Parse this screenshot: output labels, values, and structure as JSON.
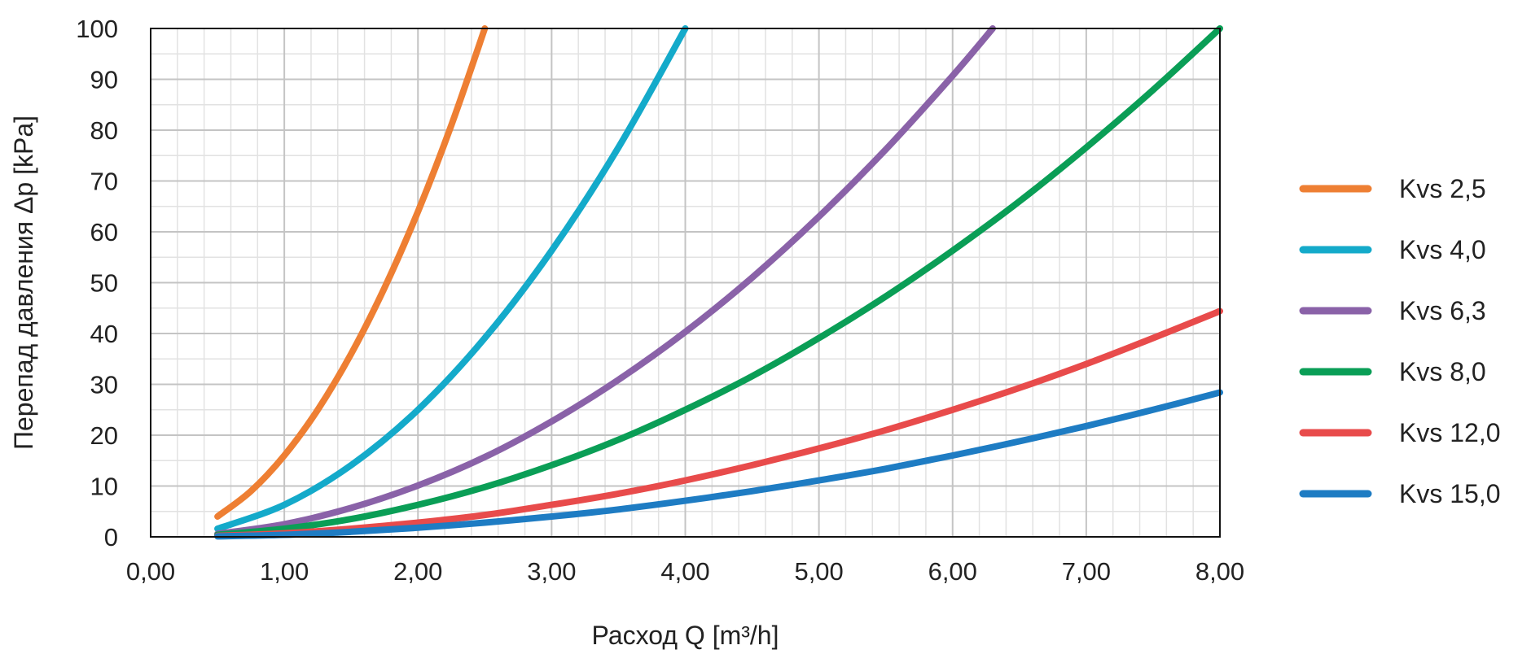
{
  "chart_data": {
    "type": "line",
    "xlabel": "Расход Q [m³/h]",
    "ylabel": "Перепад давления  Δp [kPa]",
    "xlim": [
      0,
      8
    ],
    "ylim": [
      0,
      100
    ],
    "x_ticks": [
      "0,00",
      "1,00",
      "2,00",
      "3,00",
      "4,00",
      "5,00",
      "6,00",
      "7,00",
      "8,00"
    ],
    "y_ticks": [
      "0",
      "10",
      "20",
      "30",
      "40",
      "50",
      "60",
      "70",
      "80",
      "90",
      "100"
    ],
    "grid": true,
    "legend_position": "right",
    "series": [
      {
        "name": "Kvs 2,5",
        "color": "#EE7F33",
        "x": [
          0.5,
          0.75,
          1.0,
          1.25,
          1.5,
          1.75,
          2.0,
          2.25,
          2.5
        ],
        "y": [
          4,
          9,
          16,
          25,
          36,
          49,
          64,
          81,
          100
        ]
      },
      {
        "name": "Kvs 4,0",
        "color": "#14AACA",
        "x": [
          0.5,
          1.0,
          1.5,
          2.0,
          2.5,
          3.0,
          3.5,
          4.0
        ],
        "y": [
          1.6,
          6.3,
          14.1,
          25.0,
          39.1,
          56.3,
          76.6,
          100
        ]
      },
      {
        "name": "Kvs 6,3",
        "color": "#8A62A8",
        "x": [
          0.5,
          1.0,
          1.5,
          2.0,
          2.5,
          3.0,
          3.5,
          4.0,
          4.5,
          5.0,
          5.5,
          6.0,
          6.3
        ],
        "y": [
          0.6,
          2.5,
          5.7,
          10.1,
          15.7,
          22.7,
          30.9,
          40.3,
          51.0,
          63.0,
          76.2,
          90.7,
          100
        ]
      },
      {
        "name": "Kvs 8,0",
        "color": "#0A9E56",
        "x": [
          0.5,
          1.0,
          1.5,
          2.0,
          2.5,
          3.0,
          3.5,
          4.0,
          4.5,
          5.0,
          5.5,
          6.0,
          6.5,
          7.0,
          7.5,
          8.0
        ],
        "y": [
          0.4,
          1.6,
          3.5,
          6.3,
          9.8,
          14.1,
          19.1,
          25.0,
          31.6,
          39.1,
          47.3,
          56.3,
          66.0,
          76.6,
          87.9,
          100
        ]
      },
      {
        "name": "Kvs 12,0",
        "color": "#E84B4B",
        "x": [
          0.5,
          1.0,
          1.5,
          2.0,
          2.5,
          3.0,
          3.5,
          4.0,
          4.5,
          5.0,
          5.5,
          6.0,
          6.5,
          7.0,
          7.5,
          8.0
        ],
        "y": [
          0.2,
          0.7,
          1.6,
          2.8,
          4.3,
          6.3,
          8.5,
          11.1,
          14.1,
          17.4,
          21.0,
          25.0,
          29.3,
          34.0,
          39.1,
          44.4
        ]
      },
      {
        "name": "Kvs 15,0",
        "color": "#1E7CC3",
        "x": [
          0.5,
          1.0,
          1.5,
          2.0,
          2.5,
          3.0,
          3.5,
          4.0,
          4.5,
          5.0,
          5.5,
          6.0,
          6.5,
          7.0,
          7.5,
          8.0
        ],
        "y": [
          0.1,
          0.4,
          1.0,
          1.8,
          2.8,
          4.0,
          5.4,
          7.1,
          9.0,
          11.1,
          13.4,
          16.0,
          18.8,
          21.8,
          25.0,
          28.4
        ]
      }
    ]
  }
}
